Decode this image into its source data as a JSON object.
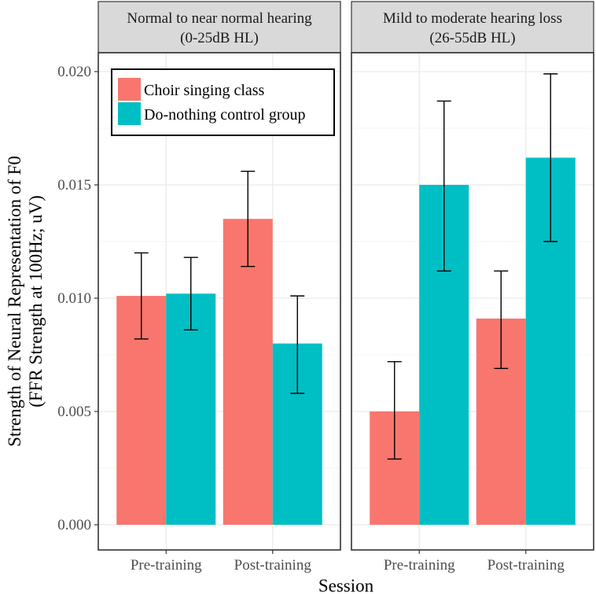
{
  "chart_data": {
    "type": "bar",
    "xlabel": "Session",
    "ylabel_lines": [
      "Strength of Neural Representation of F0",
      "(FFR Strength at 100Hz; uV)"
    ],
    "ylim": [
      0.0,
      0.0215
    ],
    "yticks": [
      "0.000",
      "0.005",
      "0.010",
      "0.015",
      "0.020"
    ],
    "categories": [
      "Pre-training",
      "Post-training"
    ],
    "legend": {
      "placement": "top-left inside first panel",
      "entries": [
        {
          "name": "Choir singing class",
          "color": "#F8766D"
        },
        {
          "name": "Do-nothing control group",
          "color": "#00BFC4"
        }
      ]
    },
    "panels": [
      {
        "strip": [
          "Normal to near normal hearing",
          "(0-25dB HL)"
        ],
        "series": [
          {
            "name": "Choir singing class",
            "values": [
              0.0101,
              0.0135
            ],
            "err_low": [
              0.0082,
              0.0114
            ],
            "err_high": [
              0.012,
              0.0156
            ]
          },
          {
            "name": "Do-nothing control group",
            "values": [
              0.0102,
              0.008
            ],
            "err_low": [
              0.0086,
              0.0058
            ],
            "err_high": [
              0.0118,
              0.0101
            ]
          }
        ]
      },
      {
        "strip": [
          "Mild to moderate hearing loss",
          "(26-55dB HL)"
        ],
        "series": [
          {
            "name": "Choir singing class",
            "values": [
              0.005,
              0.0091
            ],
            "err_low": [
              0.0029,
              0.0069
            ],
            "err_high": [
              0.0072,
              0.0112
            ]
          },
          {
            "name": "Do-nothing control group",
            "values": [
              0.015,
              0.0162
            ],
            "err_low": [
              0.0112,
              0.0125
            ],
            "err_high": [
              0.0187,
              0.0199
            ]
          }
        ]
      }
    ],
    "grid": true
  }
}
